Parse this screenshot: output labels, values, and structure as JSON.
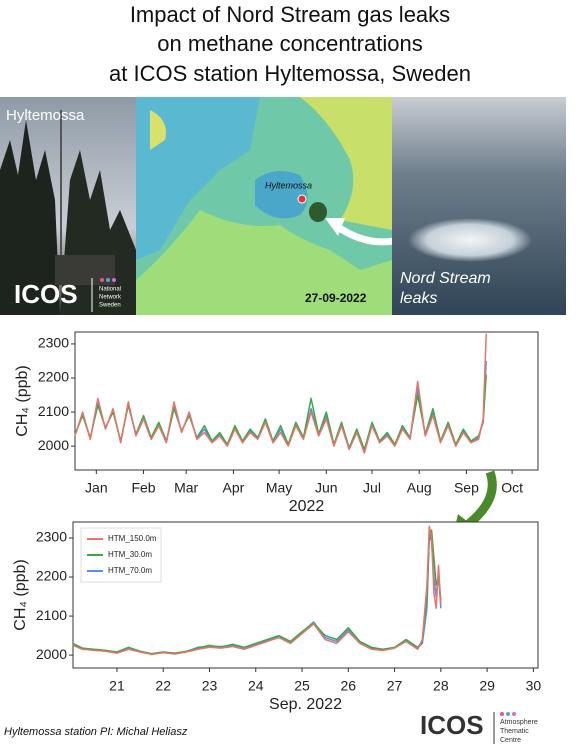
{
  "header": {
    "title_lines": [
      "Impact of Nord Stream gas leaks",
      "on methane concentrations",
      "at ICOS station Hyltemossa, Sweden"
    ]
  },
  "photos": {
    "site_label": "Hyltemossa",
    "logo": "ICOS",
    "network": [
      "National",
      "Network",
      "Sweden"
    ],
    "map_marker": "Hyltemossa",
    "map_date": "27-09-2022",
    "leak_label": [
      "Nord Stream",
      "leaks"
    ]
  },
  "chart_data": [
    {
      "type": "line",
      "ylabel": "CH₄ (ppb)",
      "xlabel": "2022",
      "x": [
        0,
        5,
        10,
        15,
        20,
        25,
        30,
        35,
        40,
        45,
        50,
        55,
        60,
        65,
        70,
        75,
        80,
        85,
        90,
        95,
        100,
        105,
        110,
        115,
        120,
        125,
        130,
        135,
        140,
        145,
        150,
        155,
        160,
        165,
        170,
        175,
        180,
        185,
        190,
        195,
        200,
        205,
        210,
        215,
        220,
        225,
        230,
        235,
        240,
        245,
        250,
        255,
        260,
        265,
        268,
        270
      ],
      "series": [
        {
          "color": "#e8736a",
          "values": [
            2030,
            2100,
            2020,
            2140,
            2050,
            2110,
            2010,
            2130,
            2030,
            2080,
            2020,
            2060,
            2010,
            2130,
            2040,
            2100,
            2020,
            2040,
            2010,
            2030,
            2000,
            2050,
            2010,
            2040,
            2020,
            2070,
            2010,
            2040,
            2000,
            2060,
            2020,
            2100,
            2030,
            2080,
            2000,
            2060,
            1990,
            2040,
            1980,
            2060,
            2010,
            2030,
            2000,
            2050,
            2020,
            2190,
            2030,
            2090,
            2010,
            2060,
            2000,
            2040,
            2010,
            2020,
            2080,
            2330
          ]
        },
        {
          "color": "#3aa84a",
          "values": [
            2035,
            2090,
            2025,
            2120,
            2055,
            2100,
            2015,
            2120,
            2035,
            2090,
            2025,
            2070,
            2015,
            2110,
            2045,
            2090,
            2025,
            2060,
            2015,
            2040,
            2005,
            2060,
            2015,
            2050,
            2025,
            2080,
            2015,
            2060,
            2005,
            2070,
            2025,
            2140,
            2035,
            2100,
            2005,
            2070,
            1995,
            2050,
            1990,
            2070,
            2015,
            2040,
            2005,
            2060,
            2025,
            2150,
            2035,
            2110,
            2015,
            2070,
            2005,
            2050,
            2015,
            2030,
            2070,
            2210
          ]
        },
        {
          "color": "#5b8fe0",
          "values": [
            2032,
            2095,
            2022,
            2125,
            2052,
            2105,
            2012,
            2125,
            2032,
            2085,
            2022,
            2065,
            2012,
            2115,
            2042,
            2095,
            2022,
            2050,
            2012,
            2035,
            2002,
            2055,
            2012,
            2045,
            2022,
            2075,
            2012,
            2050,
            2002,
            2065,
            2022,
            2110,
            2032,
            2090,
            2002,
            2065,
            1992,
            2045,
            1985,
            2065,
            2012,
            2035,
            2002,
            2055,
            2022,
            2170,
            2032,
            2100,
            2012,
            2065,
            2002,
            2045,
            2012,
            2025,
            2075,
            2250
          ]
        }
      ],
      "xlim": [
        0,
        304
      ],
      "ylim": [
        1930,
        2335
      ],
      "xticks": [
        {
          "value": 14,
          "label": "Jan"
        },
        {
          "value": 45,
          "label": "Feb"
        },
        {
          "value": 73,
          "label": "Mar"
        },
        {
          "value": 104,
          "label": "Apr"
        },
        {
          "value": 134,
          "label": "May"
        },
        {
          "value": 165,
          "label": "Jun"
        },
        {
          "value": 195,
          "label": "Jul"
        },
        {
          "value": 226,
          "label": "Aug"
        },
        {
          "value": 257,
          "label": "Sep"
        },
        {
          "value": 287,
          "label": "Oct"
        }
      ],
      "yticks": [
        2000,
        2100,
        2200,
        2300
      ]
    },
    {
      "type": "line",
      "ylabel": "CH₄ (ppb)",
      "xlabel": "Sep. 2022",
      "legend": "upper left",
      "x": [
        20.05,
        20.25,
        20.5,
        20.75,
        21.0,
        21.25,
        21.5,
        21.75,
        22.0,
        22.25,
        22.5,
        22.75,
        23.0,
        23.25,
        23.5,
        23.75,
        24.0,
        24.25,
        24.5,
        24.75,
        25.0,
        25.25,
        25.5,
        25.75,
        26.0,
        26.25,
        26.5,
        26.75,
        27.0,
        27.25,
        27.5,
        27.6,
        27.7,
        27.75,
        27.8,
        27.85,
        27.9,
        27.95,
        28.0
      ],
      "series": [
        {
          "name": "HTM_150.0m",
          "color": "#e8736a",
          "values": [
            2025,
            2015,
            2012,
            2010,
            2005,
            2015,
            2008,
            2002,
            2006,
            2003,
            2008,
            2015,
            2020,
            2018,
            2022,
            2015,
            2025,
            2035,
            2045,
            2030,
            2055,
            2080,
            2040,
            2030,
            2060,
            2030,
            2015,
            2012,
            2018,
            2035,
            2015,
            2040,
            2180,
            2330,
            2300,
            2160,
            2120,
            2230,
            2130
          ]
        },
        {
          "name": "HTM_30.0m",
          "color": "#3aa84a",
          "values": [
            2030,
            2018,
            2015,
            2012,
            2008,
            2020,
            2010,
            2004,
            2008,
            2005,
            2010,
            2018,
            2025,
            2020,
            2028,
            2020,
            2030,
            2040,
            2050,
            2035,
            2060,
            2082,
            2050,
            2040,
            2070,
            2035,
            2020,
            2015,
            2020,
            2040,
            2020,
            2035,
            2150,
            2300,
            2320,
            2250,
            2180,
            2200,
            2140
          ]
        },
        {
          "name": "HTM_70.0m",
          "color": "#5b8fe0",
          "values": [
            2028,
            2016,
            2014,
            2011,
            2007,
            2018,
            2009,
            2003,
            2007,
            2004,
            2009,
            2020,
            2022,
            2022,
            2025,
            2018,
            2028,
            2038,
            2048,
            2033,
            2058,
            2085,
            2045,
            2035,
            2065,
            2032,
            2018,
            2014,
            2019,
            2038,
            2018,
            2030,
            2120,
            2310,
            2290,
            2200,
            2150,
            2210,
            2120
          ]
        }
      ],
      "xlim": [
        20.05,
        30.1
      ],
      "ylim": [
        1967,
        2341
      ],
      "xticks": [
        21,
        22,
        23,
        24,
        25,
        26,
        27,
        28,
        29,
        30
      ],
      "yticks": [
        2000,
        2100,
        2200,
        2300
      ]
    }
  ],
  "footer": {
    "credit": "Hyltemossa station PI: Michal Heliasz",
    "logo": "ICOS",
    "centre": [
      "Atmosphere",
      "Thematic",
      "Centre"
    ]
  }
}
